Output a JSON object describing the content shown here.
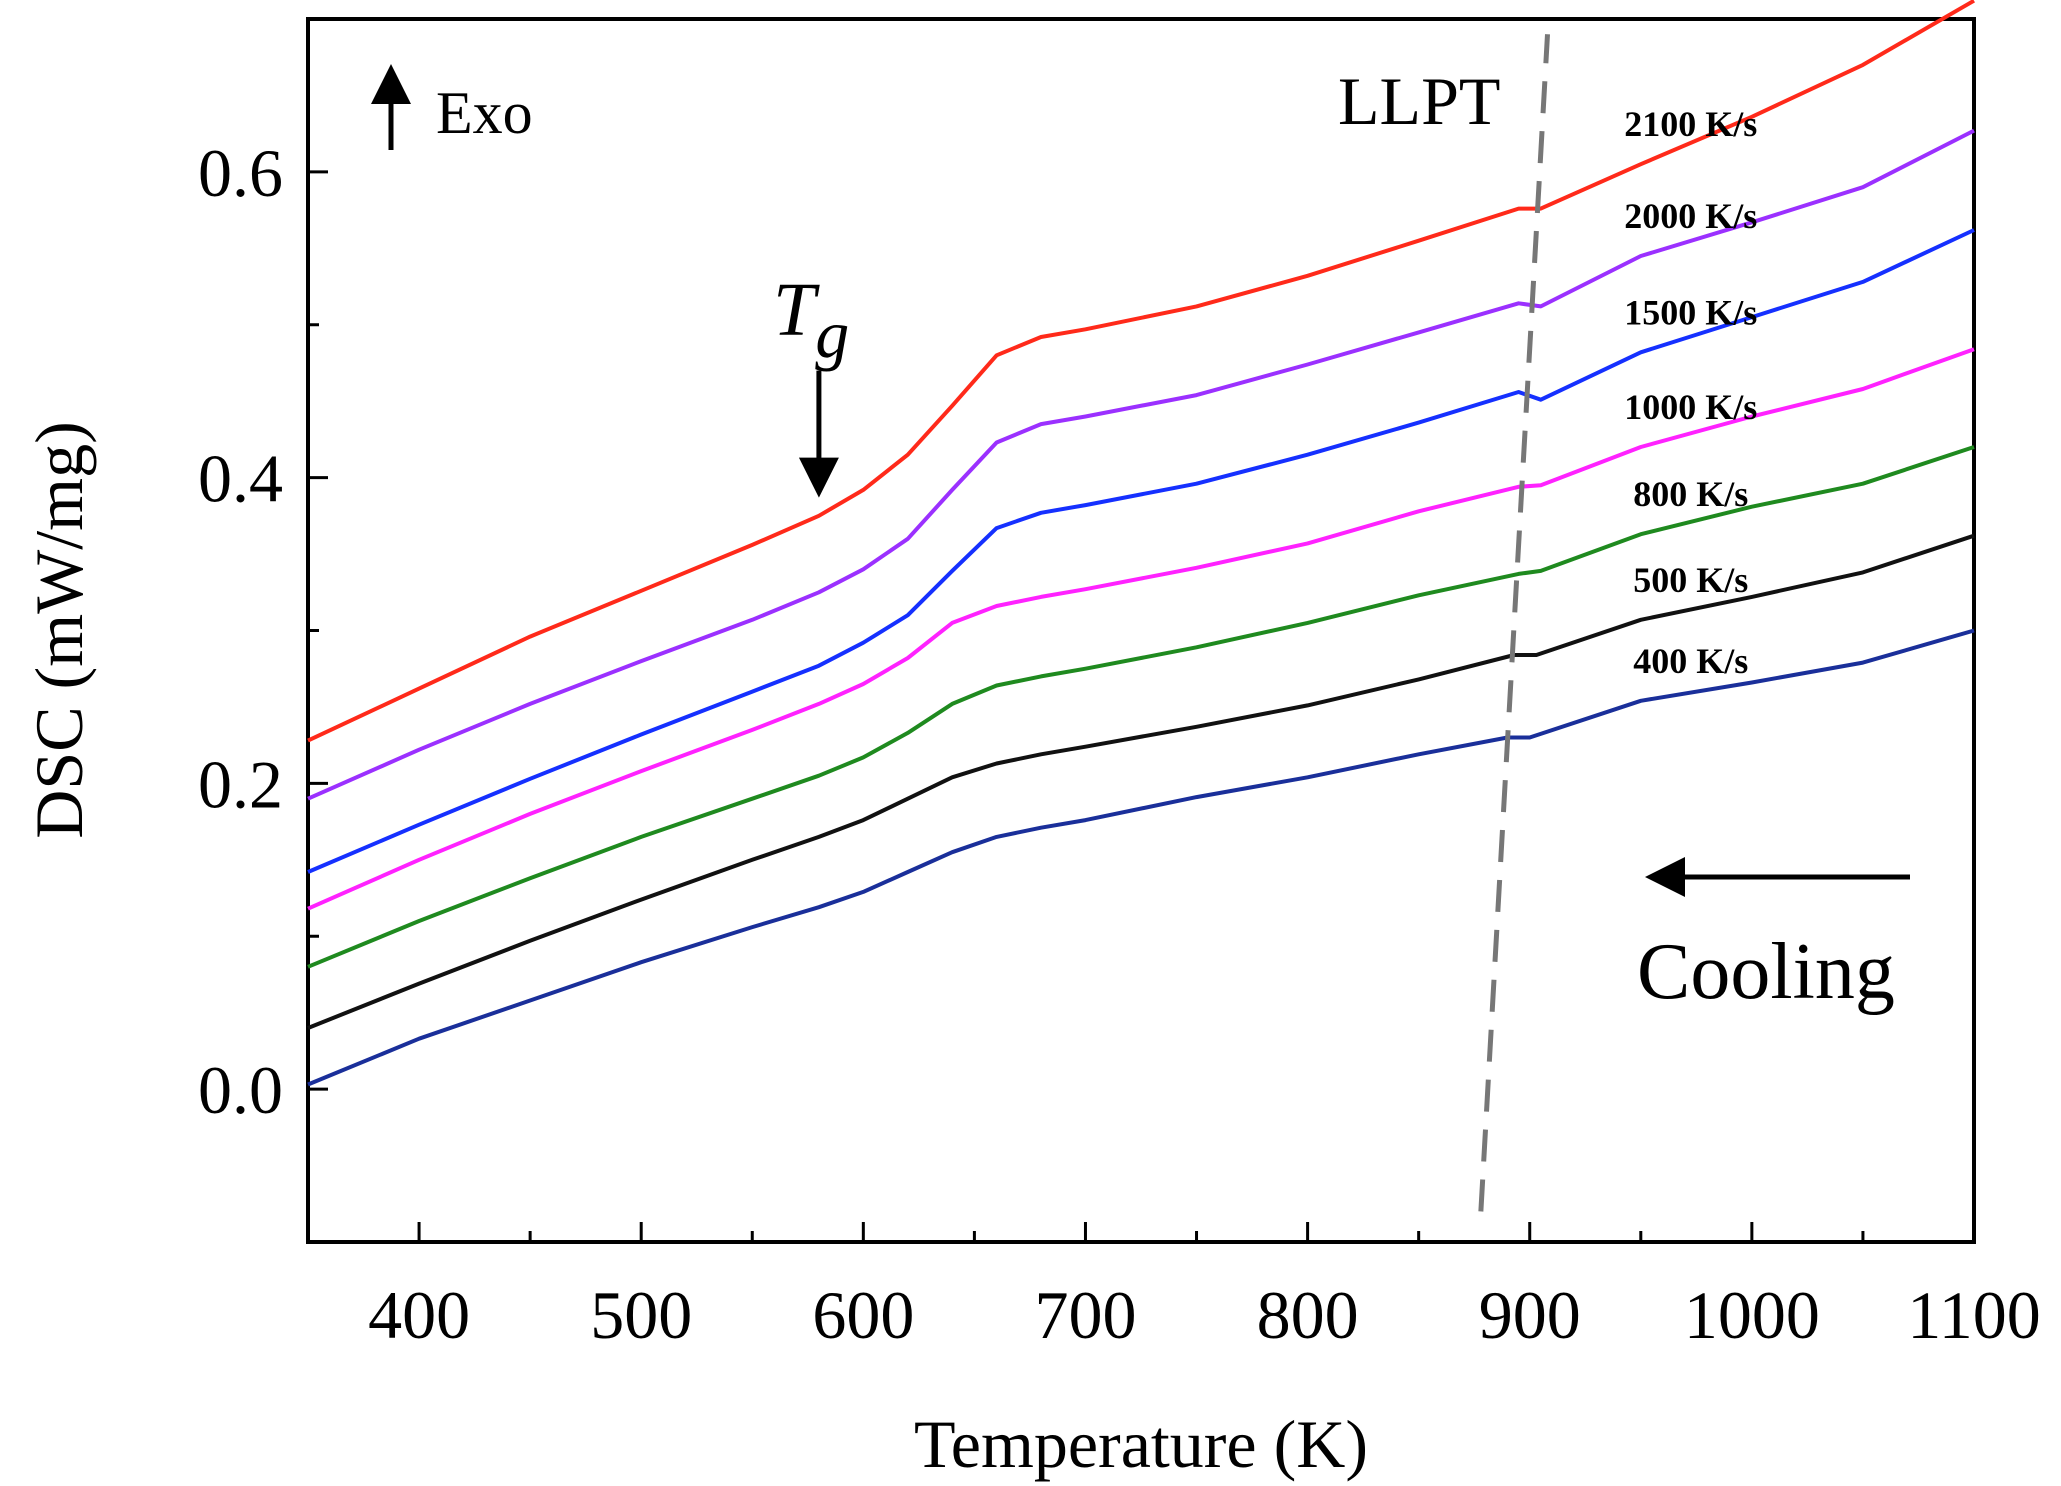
{
  "chart_data": {
    "type": "line",
    "title": "",
    "xlabel": "Temperature (K)",
    "ylabel": "DSC (mW/mg)",
    "xlim": [
      350,
      1100
    ],
    "ylim": [
      -0.1,
      0.7
    ],
    "xticks": [
      400,
      500,
      600,
      700,
      800,
      900,
      1000,
      1100
    ],
    "yticks": [
      0.0,
      0.2,
      0.4,
      0.6
    ],
    "ytick_labels": [
      "0.0",
      "0.2",
      "0.4",
      "0.6"
    ],
    "grid": false,
    "legend": "inline-right",
    "series": [
      {
        "name": "2100 K/s",
        "color": "#ff2a1a",
        "x": [
          350,
          400,
          450,
          500,
          550,
          580,
          600,
          620,
          640,
          660,
          680,
          700,
          750,
          800,
          850,
          895,
          905,
          950,
          1000,
          1050,
          1100
        ],
        "y": [
          0.228,
          0.262,
          0.296,
          0.326,
          0.356,
          0.375,
          0.392,
          0.415,
          0.447,
          0.48,
          0.492,
          0.497,
          0.512,
          0.532,
          0.555,
          0.576,
          0.576,
          0.605,
          0.636,
          0.67,
          0.712
        ]
      },
      {
        "name": "2000 K/s",
        "color": "#9b30ff",
        "x": [
          350,
          400,
          450,
          500,
          550,
          580,
          600,
          620,
          640,
          660,
          680,
          700,
          750,
          800,
          850,
          895,
          905,
          950,
          1000,
          1050,
          1100
        ],
        "y": [
          0.19,
          0.222,
          0.252,
          0.28,
          0.307,
          0.325,
          0.34,
          0.36,
          0.392,
          0.423,
          0.435,
          0.44,
          0.454,
          0.474,
          0.495,
          0.514,
          0.512,
          0.545,
          0.567,
          0.59,
          0.627
        ]
      },
      {
        "name": "1500 K/s",
        "color": "#1530ff",
        "x": [
          350,
          400,
          450,
          500,
          550,
          580,
          600,
          620,
          640,
          660,
          680,
          700,
          750,
          800,
          850,
          895,
          905,
          950,
          1000,
          1050,
          1100
        ],
        "y": [
          0.142,
          0.173,
          0.203,
          0.232,
          0.26,
          0.277,
          0.292,
          0.31,
          0.339,
          0.367,
          0.377,
          0.382,
          0.396,
          0.415,
          0.436,
          0.456,
          0.451,
          0.482,
          0.505,
          0.528,
          0.562
        ]
      },
      {
        "name": "1000 K/s",
        "color": "#ff22ff",
        "x": [
          350,
          400,
          450,
          500,
          550,
          580,
          600,
          620,
          640,
          660,
          680,
          700,
          750,
          800,
          850,
          895,
          905,
          950,
          1000,
          1050,
          1100
        ],
        "y": [
          0.118,
          0.15,
          0.18,
          0.208,
          0.235,
          0.252,
          0.265,
          0.282,
          0.305,
          0.316,
          0.322,
          0.327,
          0.341,
          0.357,
          0.378,
          0.394,
          0.395,
          0.42,
          0.44,
          0.458,
          0.484
        ]
      },
      {
        "name": "800 K/s",
        "color": "#1f8a1f",
        "x": [
          350,
          400,
          450,
          500,
          550,
          580,
          600,
          620,
          640,
          660,
          680,
          700,
          750,
          800,
          850,
          895,
          905,
          950,
          1000,
          1050,
          1100
        ],
        "y": [
          0.08,
          0.11,
          0.138,
          0.165,
          0.19,
          0.205,
          0.217,
          0.233,
          0.252,
          0.264,
          0.27,
          0.275,
          0.289,
          0.305,
          0.323,
          0.337,
          0.339,
          0.363,
          0.381,
          0.396,
          0.42
        ]
      },
      {
        "name": "500 K/s",
        "color": "#111111",
        "x": [
          350,
          400,
          450,
          500,
          550,
          580,
          600,
          620,
          640,
          660,
          680,
          700,
          750,
          800,
          850,
          893,
          903,
          950,
          1000,
          1050,
          1100
        ],
        "y": [
          0.04,
          0.069,
          0.097,
          0.124,
          0.15,
          0.165,
          0.176,
          0.19,
          0.204,
          0.213,
          0.219,
          0.224,
          0.237,
          0.251,
          0.268,
          0.284,
          0.284,
          0.307,
          0.322,
          0.338,
          0.362
        ]
      },
      {
        "name": "400 K/s",
        "color": "#1a2f9a",
        "x": [
          350,
          400,
          450,
          500,
          550,
          580,
          600,
          620,
          640,
          660,
          680,
          700,
          750,
          800,
          850,
          890,
          900,
          950,
          1000,
          1050,
          1100
        ],
        "y": [
          0.003,
          0.033,
          0.058,
          0.083,
          0.106,
          0.119,
          0.129,
          0.142,
          0.155,
          0.165,
          0.171,
          0.176,
          0.191,
          0.204,
          0.219,
          0.23,
          0.23,
          0.254,
          0.266,
          0.279,
          0.3
        ]
      }
    ],
    "annotations": {
      "exo": "Exo",
      "tg_main": "T",
      "tg_sub": "g",
      "llpt": "LLPT",
      "cooling": "Cooling",
      "llpt_line": {
        "x_start": 878,
        "y_start": -0.08,
        "x_end": 908,
        "y_end": 0.69
      },
      "tg_arrow_x": 580,
      "tg_arrow_y_top": 0.47,
      "tg_arrow_y_bottom": 0.4
    }
  }
}
